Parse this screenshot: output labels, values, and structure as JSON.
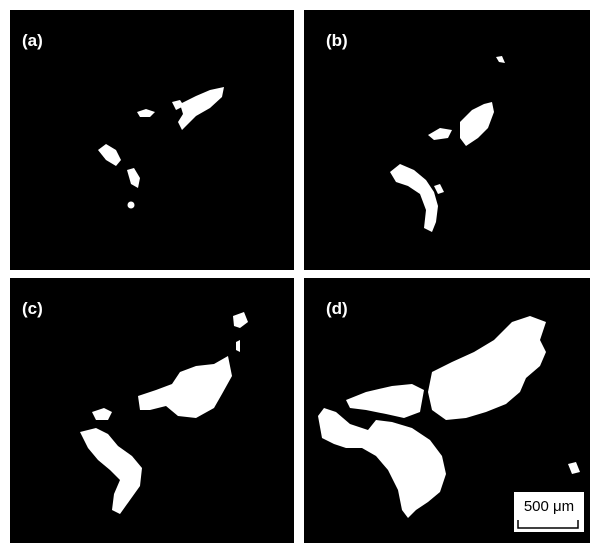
{
  "panels": [
    {
      "label": "(a)"
    },
    {
      "label": "(b)"
    },
    {
      "label": "(c)"
    },
    {
      "label": "(d)"
    }
  ],
  "scale_bar": {
    "label": "500 μm"
  }
}
